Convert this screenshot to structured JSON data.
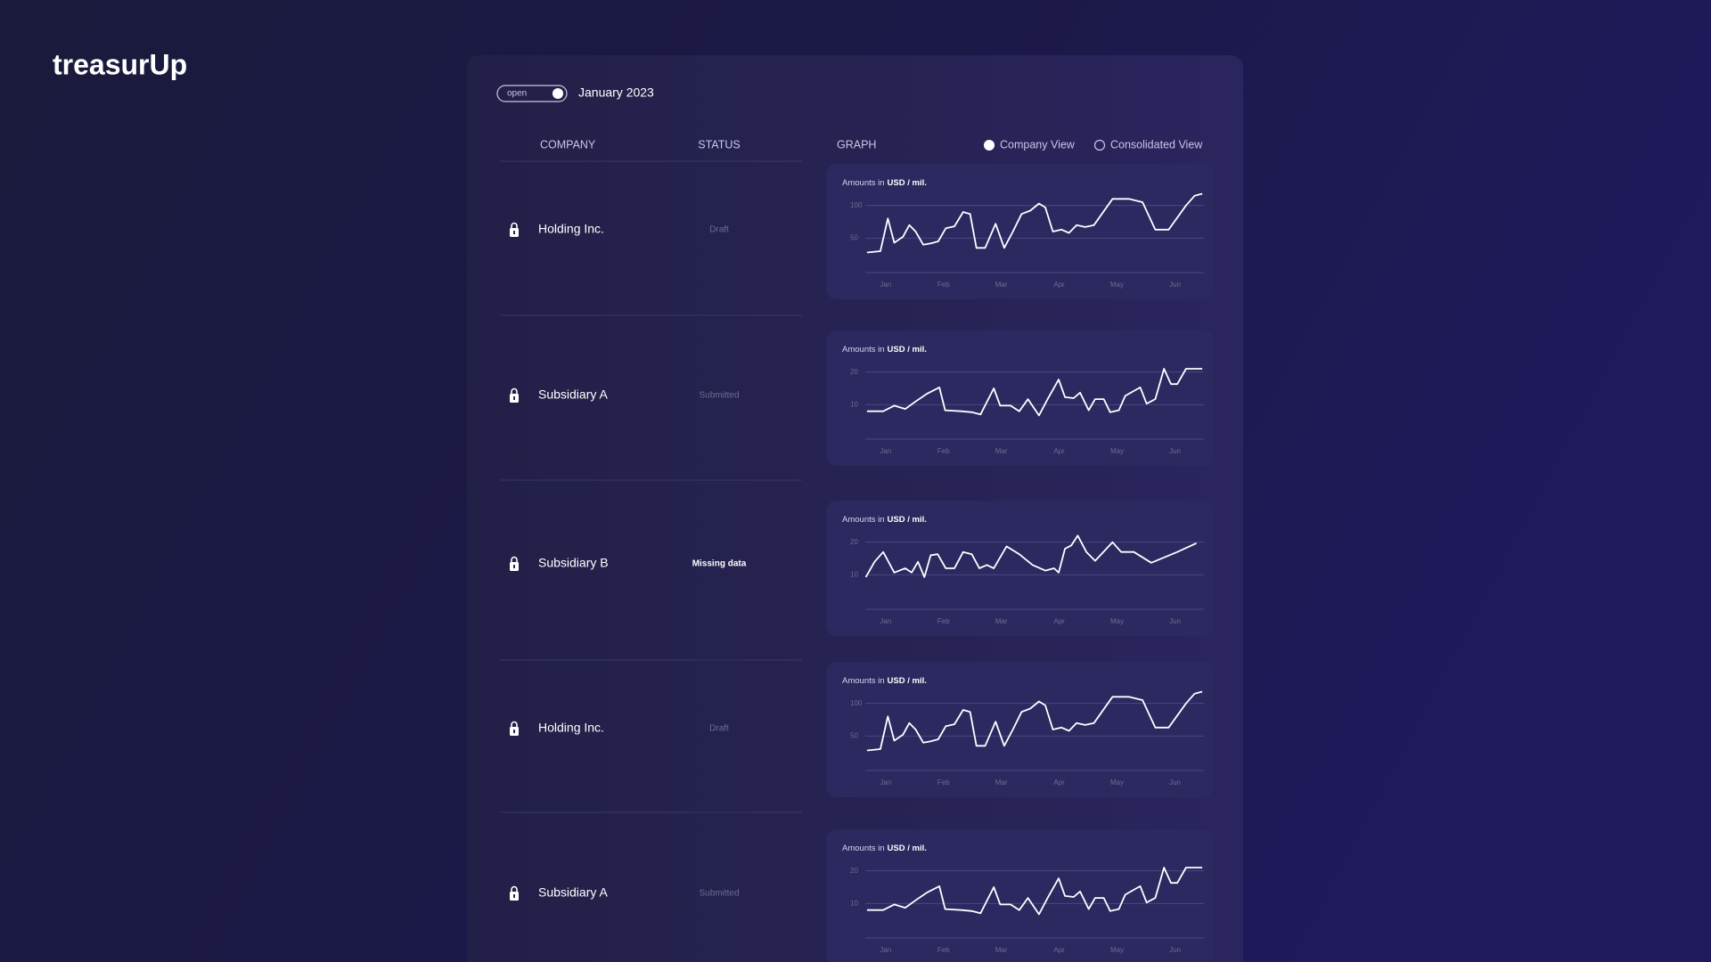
{
  "brand": "treasurUp",
  "toggle": {
    "label": "open",
    "period": "January 2023"
  },
  "columns": {
    "company": "COMPANY",
    "status": "STATUS",
    "graph": "GRAPH",
    "views": [
      "Company View",
      "Consolidated View"
    ]
  },
  "rows": [
    {
      "company": "Holding Inc.",
      "status": "Draft",
      "chart_data": {
        "type": "line",
        "note": "Amounts in",
        "unit": "USD / mil.",
        "color": "#ffffff",
        "x": [
          -0.32,
          -0.09,
          0.04,
          0.15,
          0.3,
          0.41,
          0.52,
          0.65,
          0.78,
          0.91,
          1.04,
          1.19,
          1.34,
          1.46,
          1.57,
          1.72,
          1.9,
          2.05,
          2.2,
          2.35,
          2.5,
          2.65,
          2.76,
          2.89,
          3.04,
          3.17,
          3.3,
          3.45,
          3.6,
          3.92,
          4.2,
          4.44,
          4.66,
          4.89,
          5.19,
          5.34,
          5.47
        ],
        "values": [
          28,
          30,
          80,
          43,
          52,
          70,
          60,
          40,
          42,
          45,
          65,
          68,
          90,
          87,
          35,
          35,
          72,
          35,
          60,
          87,
          92,
          103,
          97,
          60,
          63,
          58,
          70,
          67,
          70,
          110,
          110,
          105,
          63,
          63,
          100,
          115,
          118
        ],
        "xlim": [
          -0.35,
          5.5
        ],
        "ylim": [
          0,
          120
        ],
        "yticks": [
          50,
          100
        ],
        "xticks": [
          {
            "value": 0,
            "label": "Jan"
          },
          {
            "value": 1,
            "label": "Feb"
          },
          {
            "value": 2,
            "label": "Mar"
          },
          {
            "value": 3,
            "label": "Apr"
          },
          {
            "value": 4,
            "label": "May"
          },
          {
            "value": 5,
            "label": "Jun"
          }
        ]
      }
    },
    {
      "company": "Subsidiary A",
      "status": "Submitted",
      "chart_data": {
        "type": "line",
        "note": "Amounts in",
        "unit": "USD / mil.",
        "color": "#ffffff",
        "x": [
          -0.32,
          -0.04,
          0.15,
          0.34,
          0.52,
          0.71,
          0.93,
          1.03,
          1.31,
          1.49,
          1.64,
          1.87,
          1.98,
          2.16,
          2.31,
          2.46,
          2.65,
          2.8,
          2.99,
          3.1,
          3.25,
          3.36,
          3.51,
          3.62,
          3.77,
          3.88,
          4.03,
          4.14,
          4.4,
          4.51,
          4.66,
          4.81,
          4.93,
          5.04,
          5.19,
          5.47
        ],
        "values": [
          8,
          8,
          9.7,
          8.7,
          11,
          13.3,
          15.3,
          8.3,
          8,
          7.7,
          7,
          15,
          9.7,
          9.7,
          8,
          11.7,
          6.7,
          11.7,
          17.7,
          12.3,
          12,
          13.7,
          8.3,
          11.7,
          11.7,
          7.7,
          8.3,
          12.7,
          15.3,
          10.3,
          11.7,
          21,
          16.3,
          16.3,
          21,
          21
        ],
        "xlim": [
          -0.35,
          5.5
        ],
        "ylim": [
          0,
          24
        ],
        "yticks": [
          10,
          20
        ],
        "xticks": [
          {
            "value": 0,
            "label": "Jan"
          },
          {
            "value": 1,
            "label": "Feb"
          },
          {
            "value": 2,
            "label": "Mar"
          },
          {
            "value": 3,
            "label": "Apr"
          },
          {
            "value": 4,
            "label": "May"
          },
          {
            "value": 5,
            "label": "Jun"
          }
        ]
      }
    },
    {
      "company": "Subsidiary B",
      "status": "Missing data",
      "chart_data": {
        "type": "line",
        "note": "Amounts in",
        "unit": "USD / mil.",
        "color": "#ffffff",
        "x": [
          -0.34,
          -0.19,
          -0.04,
          0.15,
          0.34,
          0.45,
          0.56,
          0.67,
          0.78,
          0.9,
          1.04,
          1.19,
          1.34,
          1.49,
          1.62,
          1.75,
          1.87,
          2.09,
          2.31,
          2.54,
          2.76,
          2.91,
          2.99,
          3.1,
          3.21,
          3.32,
          3.47,
          3.62,
          3.92,
          4.07,
          4.29,
          4.59,
          5.04,
          5.37
        ],
        "values": [
          9.3,
          14,
          17,
          10.7,
          12,
          10.7,
          14,
          9.3,
          16,
          16.3,
          12,
          12,
          17,
          16.3,
          12,
          13,
          12,
          18.7,
          16.3,
          13,
          11.3,
          12,
          10.7,
          18,
          19,
          22,
          17,
          14.3,
          20,
          17,
          17,
          13.7,
          17,
          19.7
        ],
        "xlim": [
          -0.35,
          5.5
        ],
        "ylim": [
          0,
          24
        ],
        "yticks": [
          10,
          20
        ],
        "xticks": [
          {
            "value": 0,
            "label": "Jan"
          },
          {
            "value": 1,
            "label": "Feb"
          },
          {
            "value": 2,
            "label": "Mar"
          },
          {
            "value": 3,
            "label": "Apr"
          },
          {
            "value": 4,
            "label": "May"
          },
          {
            "value": 5,
            "label": "Jun"
          }
        ]
      }
    },
    {
      "company": "Holding Inc.",
      "status": "Draft",
      "chart_data": {
        "type": "line",
        "note": "Amounts in",
        "unit": "USD / mil.",
        "color": "#ffffff",
        "x": [
          -0.32,
          -0.09,
          0.04,
          0.15,
          0.3,
          0.41,
          0.52,
          0.65,
          0.78,
          0.91,
          1.04,
          1.19,
          1.34,
          1.46,
          1.57,
          1.72,
          1.9,
          2.05,
          2.2,
          2.35,
          2.5,
          2.65,
          2.76,
          2.89,
          3.04,
          3.17,
          3.3,
          3.45,
          3.6,
          3.92,
          4.2,
          4.44,
          4.66,
          4.89,
          5.19,
          5.34,
          5.47
        ],
        "values": [
          28,
          30,
          80,
          43,
          52,
          70,
          60,
          40,
          42,
          45,
          65,
          68,
          90,
          87,
          35,
          35,
          72,
          35,
          60,
          87,
          92,
          103,
          97,
          60,
          63,
          58,
          70,
          67,
          70,
          110,
          110,
          105,
          63,
          63,
          100,
          115,
          118
        ],
        "xlim": [
          -0.35,
          5.5
        ],
        "ylim": [
          0,
          120
        ],
        "yticks": [
          50,
          100
        ],
        "xticks": [
          {
            "value": 0,
            "label": "Jan"
          },
          {
            "value": 1,
            "label": "Feb"
          },
          {
            "value": 2,
            "label": "Mar"
          },
          {
            "value": 3,
            "label": "Apr"
          },
          {
            "value": 4,
            "label": "May"
          },
          {
            "value": 5,
            "label": "Jun"
          }
        ]
      }
    },
    {
      "company": "Subsidiary A",
      "status": "Submitted",
      "chart_data": {
        "type": "line",
        "note": "Amounts in",
        "unit": "USD / mil.",
        "color": "#ffffff",
        "x": [
          -0.32,
          -0.04,
          0.15,
          0.34,
          0.52,
          0.71,
          0.93,
          1.03,
          1.31,
          1.49,
          1.64,
          1.87,
          1.98,
          2.16,
          2.31,
          2.46,
          2.65,
          2.8,
          2.99,
          3.1,
          3.25,
          3.36,
          3.51,
          3.62,
          3.77,
          3.88,
          4.03,
          4.14,
          4.4,
          4.51,
          4.66,
          4.81,
          4.93,
          5.04,
          5.19,
          5.47
        ],
        "values": [
          8,
          8,
          9.7,
          8.7,
          11,
          13.3,
          15.3,
          8.3,
          8,
          7.7,
          7,
          15,
          9.7,
          9.7,
          8,
          11.7,
          6.7,
          11.7,
          17.7,
          12.3,
          12,
          13.7,
          8.3,
          11.7,
          11.7,
          7.7,
          8.3,
          12.7,
          15.3,
          10.3,
          11.7,
          21,
          16.3,
          16.3,
          21,
          21
        ],
        "xlim": [
          -0.35,
          5.5
        ],
        "ylim": [
          0,
          24
        ],
        "yticks": [
          10,
          20
        ],
        "xticks": [
          {
            "value": 0,
            "label": "Jan"
          },
          {
            "value": 1,
            "label": "Feb"
          },
          {
            "value": 2,
            "label": "Mar"
          },
          {
            "value": 3,
            "label": "Apr"
          },
          {
            "value": 4,
            "label": "May"
          },
          {
            "value": 5,
            "label": "Jun"
          }
        ]
      }
    }
  ]
}
